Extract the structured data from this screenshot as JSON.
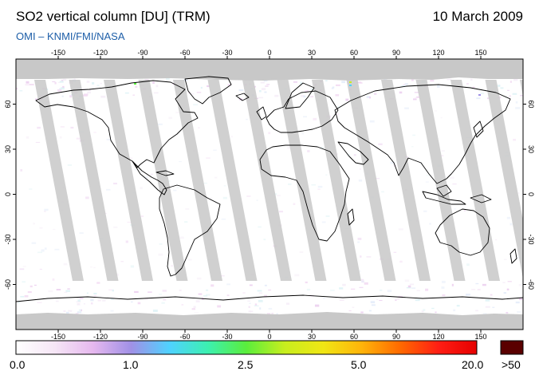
{
  "header": {
    "title": "SO2 vertical column [DU] (TRM)",
    "date": "10 March 2009",
    "source": "OMI  –  KNMI/FMI/NASA"
  },
  "map": {
    "longitude_ticks": [
      -150,
      -120,
      -90,
      -60,
      -30,
      0,
      30,
      60,
      90,
      120,
      150
    ],
    "latitude_ticks": [
      60,
      30,
      0,
      -30,
      -60
    ],
    "lon_range": [
      -180,
      180
    ],
    "lat_range": [
      -90,
      90
    ],
    "no_data_color": "#c8c8c8",
    "ocean_color": "#ffffff",
    "coastline_color": "#000000"
  },
  "colorbar": {
    "labels": [
      {
        "value": 0.0,
        "text": "0.0"
      },
      {
        "value": 1.0,
        "text": "1.0"
      },
      {
        "value": 2.5,
        "text": "2.5"
      },
      {
        "value": 5.0,
        "text": "5.0"
      },
      {
        "value": 20.0,
        "text": "20.0"
      }
    ],
    "overflow_label": ">50",
    "overflow_color": "#5a0000",
    "stops": [
      "#ffffff",
      "#f6e6f6",
      "#e6b8ee",
      "#a090e6",
      "#4fd2ff",
      "#3cf0b0",
      "#5aee3c",
      "#c8ee1e",
      "#f0e614",
      "#ffb40a",
      "#ff6a00",
      "#ff1e14",
      "#e60000"
    ]
  }
}
